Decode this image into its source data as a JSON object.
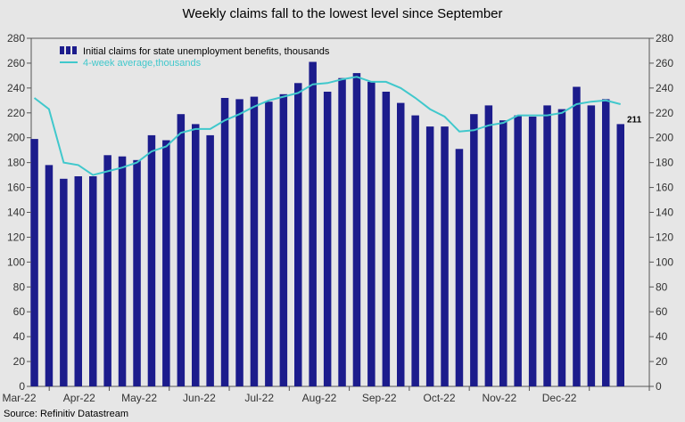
{
  "chart_data": {
    "type": "bar",
    "title": "Weekly claims fall to the lowest level since September",
    "source": "Source: Refinitiv Datastream",
    "ylim": [
      0,
      280
    ],
    "y_ticks": [
      0,
      20,
      40,
      60,
      80,
      100,
      120,
      140,
      160,
      180,
      200,
      220,
      240,
      260,
      280
    ],
    "x_month_labels": [
      "Mar-22",
      "Apr-22",
      "May-22",
      "Jun-22",
      "Jul-22",
      "Aug-22",
      "Sep-22",
      "Oct-22",
      "Nov-22",
      "Dec-22"
    ],
    "legend_position": "top-left",
    "grid": false,
    "annotation": "211",
    "colors": {
      "bars": "#1c1c8c",
      "line": "#40c8cc",
      "background": "#e6e6e6"
    },
    "series": [
      {
        "name": "Initial claims for state unemployment benefits,  thousands",
        "type": "bar",
        "values": [
          199,
          178,
          167,
          169,
          169,
          186,
          185,
          182,
          202,
          198,
          219,
          211,
          202,
          232,
          231,
          233,
          229,
          235,
          244,
          261,
          237,
          248,
          252,
          245,
          237,
          228,
          218,
          209,
          209,
          191,
          219,
          226,
          214,
          218,
          217,
          226,
          223,
          241,
          226,
          231,
          211
        ]
      },
      {
        "name": "4-week average,thousands",
        "type": "line",
        "values": [
          232,
          223,
          180,
          178,
          170,
          173,
          176,
          180,
          189,
          193,
          204,
          207,
          207,
          214,
          219,
          225,
          230,
          233,
          236,
          243,
          244,
          247,
          249,
          245,
          245,
          240,
          232,
          223,
          217,
          205,
          206,
          210,
          212,
          218,
          218,
          218,
          220,
          227,
          229,
          230,
          227
        ]
      }
    ]
  }
}
